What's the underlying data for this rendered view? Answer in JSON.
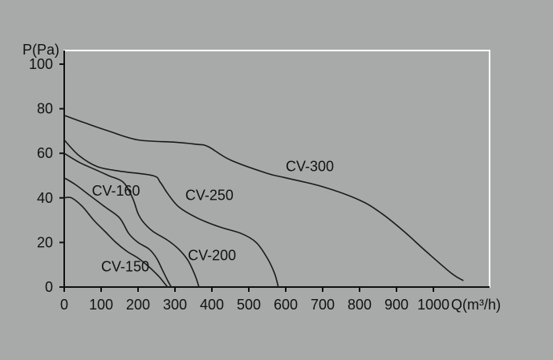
{
  "colors": {
    "background": "#a8aaa9",
    "curve": "#1a1a1a",
    "axis": "#111111",
    "frame": "#ffffff",
    "text": "#111111"
  },
  "chart_data": {
    "type": "line",
    "title": "",
    "xlabel": "Q(m³/h)",
    "ylabel": "P(Pa)",
    "xlim": [
      0,
      1150
    ],
    "ylim": [
      0,
      105
    ],
    "xticks": [
      0,
      100,
      200,
      300,
      400,
      500,
      600,
      700,
      800,
      900,
      1000
    ],
    "yticks": [
      0,
      20,
      40,
      60,
      80,
      100
    ],
    "grid": false,
    "series": [
      {
        "name": "CV-150",
        "label_at": [
          100,
          7
        ],
        "points": [
          [
            0,
            40
          ],
          [
            20,
            40
          ],
          [
            50,
            36
          ],
          [
            80,
            30
          ],
          [
            110,
            25
          ],
          [
            140,
            20
          ],
          [
            170,
            16
          ],
          [
            200,
            13
          ],
          [
            230,
            9
          ],
          [
            255,
            5
          ],
          [
            270,
            2
          ],
          [
            280,
            0
          ]
        ]
      },
      {
        "name": "CV-160",
        "label_at": [
          75,
          41
        ],
        "points": [
          [
            0,
            49
          ],
          [
            30,
            46
          ],
          [
            70,
            41
          ],
          [
            110,
            36
          ],
          [
            150,
            31
          ],
          [
            175,
            24
          ],
          [
            200,
            20
          ],
          [
            230,
            17
          ],
          [
            250,
            13
          ],
          [
            265,
            8
          ],
          [
            280,
            3
          ],
          [
            290,
            0
          ]
        ]
      },
      {
        "name": "CV-200",
        "label_at": [
          335,
          12
        ],
        "points": [
          [
            0,
            60
          ],
          [
            40,
            56
          ],
          [
            80,
            53
          ],
          [
            120,
            50
          ],
          [
            160,
            47
          ],
          [
            185,
            40
          ],
          [
            200,
            33
          ],
          [
            215,
            29
          ],
          [
            240,
            25
          ],
          [
            280,
            21
          ],
          [
            310,
            17
          ],
          [
            335,
            12
          ],
          [
            355,
            5
          ],
          [
            365,
            0
          ]
        ]
      },
      {
        "name": "CV-250",
        "label_at": [
          328,
          39
        ],
        "points": [
          [
            0,
            66
          ],
          [
            40,
            59
          ],
          [
            90,
            54
          ],
          [
            150,
            52
          ],
          [
            240,
            50
          ],
          [
            260,
            47
          ],
          [
            280,
            42
          ],
          [
            310,
            36
          ],
          [
            360,
            31
          ],
          [
            420,
            27
          ],
          [
            480,
            24
          ],
          [
            520,
            20
          ],
          [
            550,
            13
          ],
          [
            570,
            6
          ],
          [
            580,
            0
          ]
        ]
      },
      {
        "name": "CV-300",
        "label_at": [
          600,
          52
        ],
        "points": [
          [
            0,
            77
          ],
          [
            50,
            74
          ],
          [
            120,
            70
          ],
          [
            200,
            66
          ],
          [
            300,
            65
          ],
          [
            360,
            64
          ],
          [
            390,
            63
          ],
          [
            450,
            57
          ],
          [
            550,
            51
          ],
          [
            600,
            49
          ],
          [
            700,
            45
          ],
          [
            800,
            39
          ],
          [
            860,
            33
          ],
          [
            920,
            25
          ],
          [
            980,
            16
          ],
          [
            1050,
            6
          ],
          [
            1080,
            3
          ]
        ]
      }
    ]
  }
}
